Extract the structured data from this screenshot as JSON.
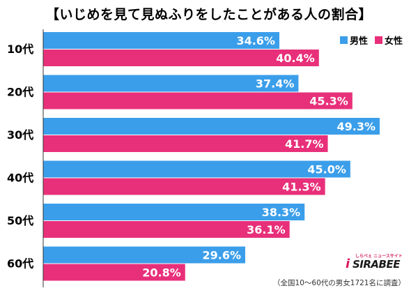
{
  "chart_data": {
    "type": "bar",
    "orientation": "horizontal",
    "title": "【いじめを見て見ぬふりをしたことがある人の割合】",
    "categories": [
      "10代",
      "20代",
      "30代",
      "40代",
      "50代",
      "60代"
    ],
    "series": [
      {
        "name": "男性",
        "color": "#3b9eea",
        "values": [
          34.6,
          37.4,
          49.3,
          45.0,
          38.3,
          29.6
        ],
        "labels": [
          "34.6%",
          "37.4%",
          "49.3%",
          "45.0%",
          "38.3%",
          "29.6%"
        ]
      },
      {
        "name": "女性",
        "color": "#e8307a",
        "values": [
          40.4,
          45.3,
          41.7,
          41.3,
          36.1,
          20.8
        ],
        "labels": [
          "40.4%",
          "45.3%",
          "41.7%",
          "41.3%",
          "36.1%",
          "20.8%"
        ]
      }
    ],
    "xlim": [
      0,
      50
    ],
    "legend_position": "top-right",
    "grid": false
  },
  "logo": {
    "main": "SIRABEE",
    "sub": "しらべぇ ニュースサイト",
    "mark": "i"
  },
  "footnote": "（全国10～60代の男女1721名に調査）"
}
